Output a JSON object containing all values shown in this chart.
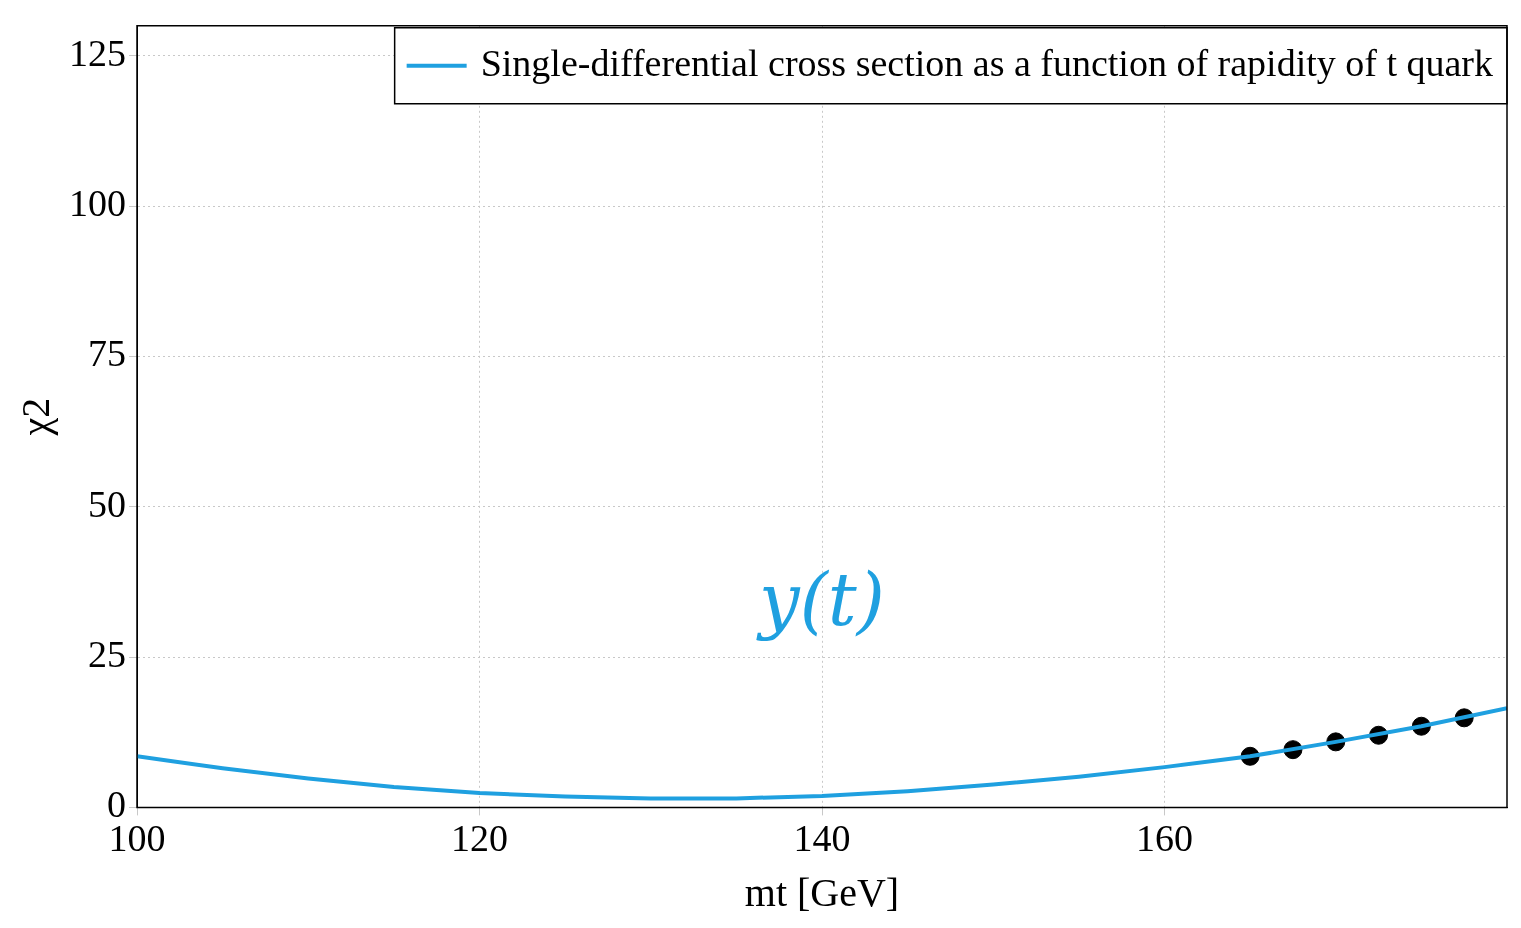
{
  "chart_data": {
    "type": "line",
    "xlabel": "mt [GeV]",
    "ylabel": "χ2",
    "xlim": [
      100,
      180
    ],
    "xticks": [
      100,
      120,
      140,
      160
    ],
    "ylim": [
      0,
      130
    ],
    "yticks": [
      0,
      25,
      50,
      75,
      100,
      125
    ],
    "grid": true,
    "legend": "top right",
    "marker": "none",
    "annotations": [
      "y(t)"
    ],
    "series": [
      {
        "name": "Single-differential cross section as a function of rapidity of t quark",
        "color": "#1fa0e0",
        "x": [
          100,
          105,
          110,
          115,
          120,
          125,
          130,
          135,
          140,
          145,
          150,
          155,
          160,
          165,
          170,
          175,
          180
        ],
        "values": [
          8.5,
          6.5,
          4.8,
          3.4,
          2.4,
          1.8,
          1.5,
          1.5,
          1.9,
          2.7,
          3.8,
          5.1,
          6.7,
          8.5,
          10.9,
          13.5,
          16.5
        ]
      },
      {
        "type": "scatter",
        "color": "#000000",
        "marker": "circle",
        "x": [
          165,
          167.5,
          170,
          172.5,
          175,
          177.5
        ],
        "values": [
          8.5,
          9.6,
          10.9,
          12.0,
          13.5,
          14.9
        ]
      }
    ]
  }
}
